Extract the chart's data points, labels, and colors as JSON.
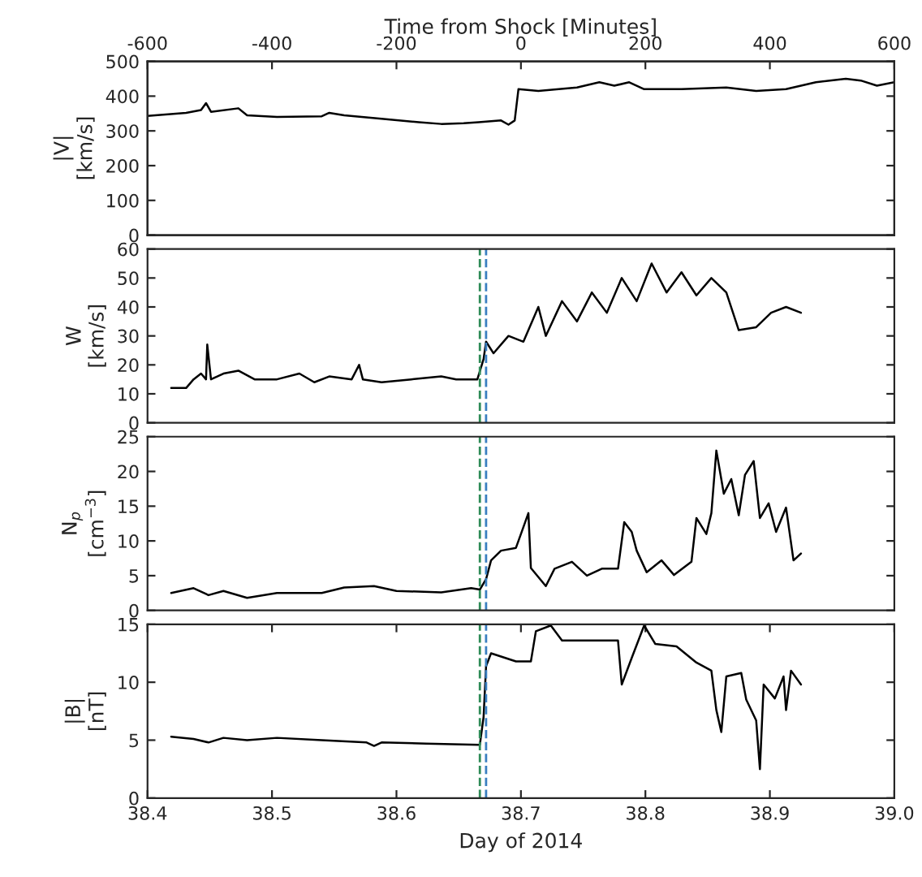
{
  "chart_data": [
    {
      "type": "line",
      "ylabel": "|V|\n[km/s]",
      "x2label": "Time from Shock [Minutes]",
      "x2lim": [
        -600,
        600
      ],
      "x2ticks": [
        -600,
        -400,
        -200,
        0,
        200,
        400,
        600
      ],
      "xlim": [
        38.4,
        39.0
      ],
      "ylim": [
        0,
        500
      ],
      "yticks": [
        0,
        100,
        200,
        300,
        400,
        500
      ],
      "tick_labels": "y",
      "grid": false,
      "legend": false,
      "x": [
        38.4,
        38.431,
        38.443,
        38.447,
        38.451,
        38.473,
        38.48,
        38.504,
        38.54,
        38.546,
        38.558,
        38.588,
        38.618,
        38.636,
        38.654,
        38.666,
        38.684,
        38.69,
        38.695,
        38.698,
        38.714,
        38.745,
        38.763,
        38.775,
        38.787,
        38.799,
        38.829,
        38.865,
        38.889,
        38.913,
        38.937,
        38.961,
        38.973,
        38.986,
        39.0
      ],
      "series": [
        {
          "color": "#000000",
          "values": [
            343,
            352,
            360,
            380,
            355,
            365,
            345,
            340,
            342,
            352,
            345,
            335,
            325,
            320,
            322,
            325,
            330,
            318,
            330,
            420,
            415,
            425,
            440,
            430,
            440,
            420,
            420,
            425,
            415,
            420,
            440,
            450,
            445,
            430,
            440
          ]
        }
      ]
    },
    {
      "type": "line",
      "ylabel": "W\n[km/s]",
      "xlim": [
        38.4,
        39.0
      ],
      "ylim": [
        0,
        60
      ],
      "yticks": [
        0,
        10,
        20,
        30,
        40,
        50,
        60
      ],
      "tick_labels": "y",
      "grid": false,
      "legend": false,
      "ref_lines": [
        {
          "axis": "x",
          "value": 38.667,
          "color": "#2e8b57",
          "line_style": "dashed"
        },
        {
          "axis": "x",
          "value": 38.672,
          "color": "#3a7fc0",
          "line_style": "dashed"
        }
      ],
      "x": [
        38.419,
        38.431,
        38.437,
        38.443,
        38.447,
        38.448,
        38.451,
        38.461,
        38.473,
        38.486,
        38.504,
        38.522,
        38.534,
        38.546,
        38.564,
        38.57,
        38.573,
        38.588,
        38.612,
        38.636,
        38.648,
        38.665,
        38.67,
        38.672,
        38.678,
        38.69,
        38.702,
        38.714,
        38.72,
        38.733,
        38.745,
        38.757,
        38.769,
        38.781,
        38.793,
        38.805,
        38.817,
        38.829,
        38.841,
        38.853,
        38.865,
        38.875,
        38.889,
        38.901,
        38.913,
        38.925
      ],
      "series": [
        {
          "color": "#000000",
          "values": [
            12,
            12,
            15,
            17,
            15,
            27,
            15,
            17,
            18,
            15,
            15,
            17,
            14,
            16,
            15,
            20,
            15,
            14,
            15,
            16,
            15,
            15,
            22,
            28,
            24,
            30,
            28,
            40,
            30,
            42,
            35,
            45,
            38,
            50,
            42,
            55,
            45,
            52,
            44,
            50,
            45,
            32,
            33,
            38,
            40,
            38
          ]
        }
      ]
    },
    {
      "type": "line",
      "ylabel": "N$_{p}$\n[cm$^{−3}$]",
      "xlim": [
        38.4,
        39.0
      ],
      "ylim": [
        0,
        25
      ],
      "yticks": [
        0,
        5,
        10,
        15,
        20,
        25
      ],
      "tick_labels": "y",
      "grid": false,
      "legend": false,
      "ref_lines": [
        {
          "axis": "x",
          "value": 38.667,
          "color": "#2e8b57",
          "line_style": "dashed"
        },
        {
          "axis": "x",
          "value": 38.672,
          "color": "#3a7fc0",
          "line_style": "dashed"
        }
      ],
      "x": [
        38.419,
        38.437,
        38.449,
        38.461,
        38.48,
        38.504,
        38.54,
        38.558,
        38.582,
        38.6,
        38.636,
        38.66,
        38.667,
        38.672,
        38.676,
        38.684,
        38.696,
        38.7,
        38.706,
        38.708,
        38.72,
        38.727,
        38.741,
        38.753,
        38.765,
        38.778,
        38.783,
        38.789,
        38.793,
        38.801,
        38.813,
        38.823,
        38.837,
        38.841,
        38.849,
        38.853,
        38.857,
        38.863,
        38.869,
        38.875,
        38.88,
        38.887,
        38.892,
        38.899,
        38.905,
        38.913,
        38.919,
        38.925
      ],
      "series": [
        {
          "color": "#000000",
          "values": [
            2.5,
            3.2,
            2.2,
            2.8,
            1.8,
            2.5,
            2.5,
            3.3,
            3.5,
            2.8,
            2.6,
            3.2,
            3.0,
            4.5,
            7.2,
            8.6,
            9,
            11,
            14,
            6.1,
            3.5,
            6,
            7,
            5,
            6,
            6,
            12.7,
            11.3,
            8.6,
            5.5,
            7.2,
            5.1,
            7,
            13.3,
            11,
            14,
            23,
            16.8,
            18.9,
            13.7,
            19.5,
            21.5,
            13.3,
            15.4,
            11.3,
            14.8,
            7.2,
            8.2
          ]
        }
      ]
    },
    {
      "type": "line",
      "ylabel": "|B|\n[nT]",
      "xlabel": "Day of 2014",
      "xlim": [
        38.4,
        39.0
      ],
      "xticks": [
        {
          "value": 38.4,
          "label": "38.4"
        },
        {
          "value": 38.5,
          "label": "38.5"
        },
        {
          "value": 38.6,
          "label": "38.6"
        },
        {
          "value": 38.7,
          "label": "38.7"
        },
        {
          "value": 38.8,
          "label": "38.8"
        },
        {
          "value": 38.9,
          "label": "38.9"
        },
        {
          "value": 39.0,
          "label": "39.0"
        }
      ],
      "ylim": [
        0,
        15
      ],
      "yticks": [
        0,
        5,
        10,
        15
      ],
      "grid": false,
      "legend": false,
      "ref_lines": [
        {
          "axis": "x",
          "value": 38.667,
          "color": "#2e8b57",
          "line_style": "dashed"
        },
        {
          "axis": "x",
          "value": 38.672,
          "color": "#3a7fc0",
          "line_style": "dashed"
        }
      ],
      "x": [
        38.419,
        38.437,
        38.449,
        38.461,
        38.48,
        38.504,
        38.54,
        38.576,
        38.582,
        38.588,
        38.624,
        38.667,
        38.67,
        38.672,
        38.676,
        38.696,
        38.708,
        38.712,
        38.724,
        38.733,
        38.76,
        38.778,
        38.781,
        38.789,
        38.799,
        38.808,
        38.825,
        38.841,
        38.853,
        38.857,
        38.861,
        38.865,
        38.877,
        38.881,
        38.889,
        38.892,
        38.895,
        38.904,
        38.911,
        38.913,
        38.917,
        38.925
      ],
      "series": [
        {
          "color": "#000000",
          "values": [
            5.3,
            5.1,
            4.8,
            5.2,
            5.0,
            5.2,
            5.0,
            4.8,
            4.5,
            4.8,
            4.7,
            4.6,
            7,
            11.4,
            12.5,
            11.8,
            11.8,
            14.4,
            14.9,
            13.6,
            13.6,
            13.6,
            9.8,
            12.1,
            14.9,
            13.3,
            13.1,
            11.7,
            11,
            7.6,
            5.7,
            10.5,
            10.8,
            8.5,
            6.7,
            2.5,
            9.8,
            8.6,
            10.5,
            7.6,
            11,
            9.8
          ]
        }
      ]
    }
  ]
}
